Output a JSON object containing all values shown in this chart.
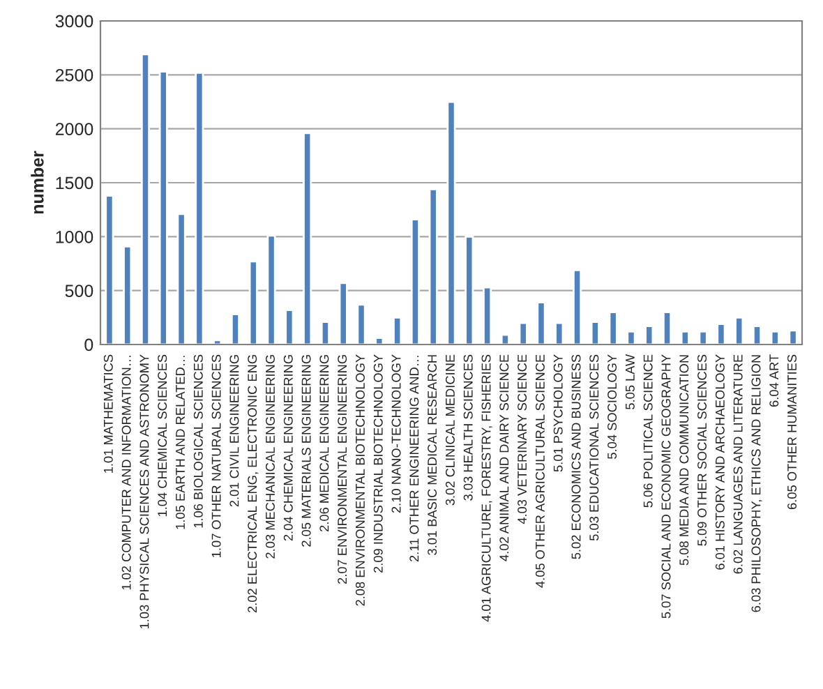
{
  "chart_data": {
    "type": "bar",
    "ylabel": "number",
    "categories": [
      "1.01 MATHEMATICS",
      "1.02 COMPUTER AND INFORMATION…",
      "1.03 PHYSICAL SCIENCES AND ASTRONOMY",
      "1.04 CHEMICAL SCIENCES",
      "1.05 EARTH AND RELATED…",
      "1.06 BIOLOGICAL SCIENCES",
      "1.07 OTHER NATURAL SCIENCES",
      "2.01 CIVIL ENGINEERING",
      "2.02 ELECTRICAL ENG, ELECTRONIC ENG",
      "2.03 MECHANICAL ENGINEERING",
      "2.04 CHEMICAL ENGINEERING",
      "2.05 MATERIALS ENGINEERING",
      "2.06 MEDICAL ENGINEERING",
      "2.07 ENVIRONMENTAL ENGINEERING",
      "2.08 ENVIRONMENTAL BIOTECHNOLOGY",
      "2.09 INDUSTRIAL BIOTECHNOLOGY",
      "2.10 NANO-TECHNOLOGY",
      "2.11 OTHER ENGINEERING AND…",
      "3.01 BASIC MEDICAL RESEARCH",
      "3.02 CLINICAL MEDICINE",
      "3.03 HEALTH SCIENCES",
      "4.01 AGRICULTURE, FORESTRY, FISHERIES",
      "4.02 ANIMAL AND DAIRY SCIENCE",
      "4.03 VETERINARY SCIENCE",
      "4.05 OTHER AGRICULTURAL SCIENCE",
      "5.01 PSYCHOLOGY",
      "5.02 ECONOMICS AND BUSINESS",
      "5.03 EDUCATIONAL SCIENCES",
      "5.04 SOCIOLOGY",
      "5.05 LAW",
      "5.06 POLITICAL SCIENCE",
      "5.07 SOCIAL AND ECONOMIC GEOGRAPHY",
      "5.08 MEDIA AND COMMUNICATION",
      "5.09 OTHER SOCIAL SCIENCES",
      "6.01 HISTORY AND ARCHAEOLOGY",
      "6.02 LANGUAGES AND LITERATURE",
      "6.03 PHILOSOPHY, ETHICS AND RELIGION",
      "6.04 ART",
      "6.05 OTHER HUMANITIES"
    ],
    "values": [
      1380,
      910,
      2690,
      2530,
      1210,
      2520,
      40,
      280,
      770,
      1010,
      320,
      1960,
      210,
      570,
      370,
      60,
      250,
      1160,
      1440,
      2250,
      1000,
      530,
      90,
      200,
      390,
      200,
      690,
      210,
      300,
      120,
      170,
      300,
      120,
      120,
      190,
      250,
      170,
      120,
      130
    ],
    "color": "#4f81bd",
    "ylim": [
      0,
      3000
    ],
    "yticks": [
      0,
      500,
      1000,
      1500,
      2000,
      2500,
      3000
    ],
    "grid": "y"
  }
}
